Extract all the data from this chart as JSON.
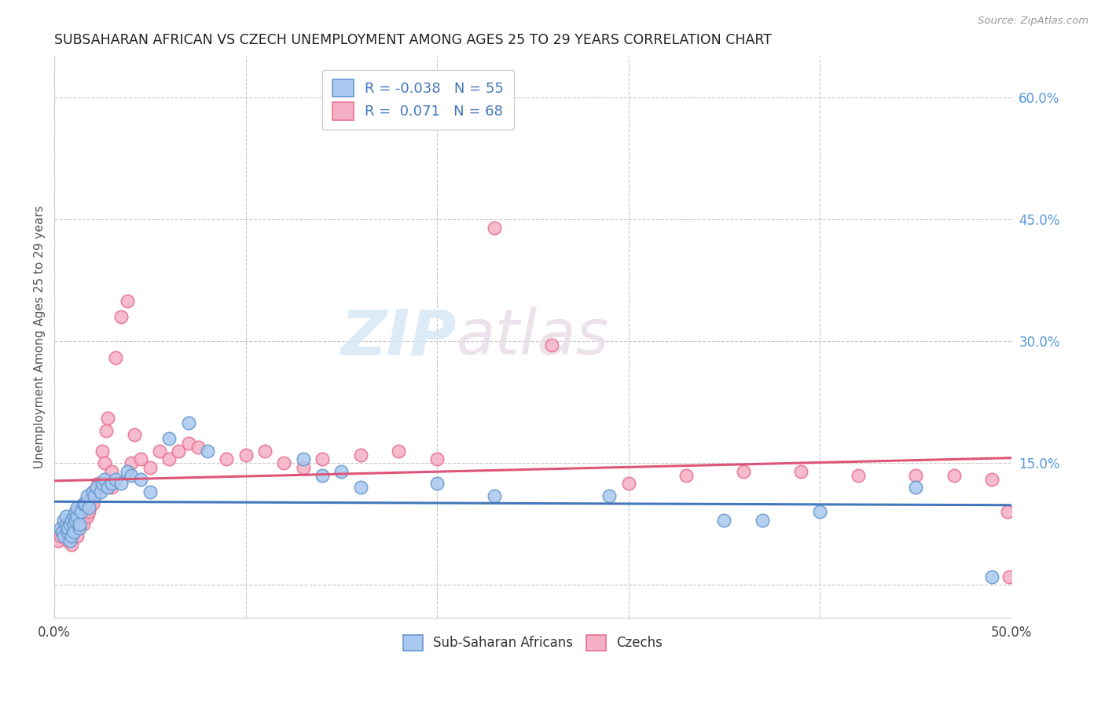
{
  "title": "SUBSAHARAN AFRICAN VS CZECH UNEMPLOYMENT AMONG AGES 25 TO 29 YEARS CORRELATION CHART",
  "source": "Source: ZipAtlas.com",
  "ylabel": "Unemployment Among Ages 25 to 29 years",
  "xlim": [
    0.0,
    0.5
  ],
  "ylim": [
    -0.04,
    0.65
  ],
  "xticks": [
    0.0,
    0.1,
    0.2,
    0.3,
    0.4,
    0.5
  ],
  "xticklabels": [
    "0.0%",
    "",
    "",
    "",
    "",
    "50.0%"
  ],
  "yticks_right": [
    0.6,
    0.45,
    0.3,
    0.15,
    0.0
  ],
  "yticklabels_right": [
    "60.0%",
    "45.0%",
    "30.0%",
    "15.0%",
    ""
  ],
  "background_color": "#ffffff",
  "grid_color": "#c8c8c8",
  "watermark_zip": "ZIP",
  "watermark_atlas": "atlas",
  "legend_labels": [
    "Sub-Saharan Africans",
    "Czechs"
  ],
  "series1_color": "#aac8f0",
  "series2_color": "#f5b0c5",
  "series1_edge_color": "#6699cc",
  "series2_edge_color": "#e87090",
  "series1_line_color": "#4477bb",
  "series2_line_color": "#dd5577",
  "r1": -0.038,
  "n1": 55,
  "r2": 0.071,
  "n2": 68,
  "series1_x": [
    0.003,
    0.004,
    0.005,
    0.005,
    0.006,
    0.006,
    0.007,
    0.007,
    0.008,
    0.008,
    0.009,
    0.009,
    0.01,
    0.01,
    0.01,
    0.011,
    0.011,
    0.012,
    0.012,
    0.013,
    0.013,
    0.014,
    0.015,
    0.016,
    0.017,
    0.018,
    0.02,
    0.021,
    0.022,
    0.024,
    0.025,
    0.026,
    0.028,
    0.03,
    0.032,
    0.035,
    0.038,
    0.04,
    0.045,
    0.05,
    0.06,
    0.07,
    0.08,
    0.13,
    0.14,
    0.15,
    0.16,
    0.2,
    0.23,
    0.29,
    0.35,
    0.37,
    0.4,
    0.45,
    0.49
  ],
  "series1_y": [
    0.07,
    0.065,
    0.08,
    0.06,
    0.075,
    0.085,
    0.065,
    0.07,
    0.075,
    0.055,
    0.06,
    0.08,
    0.075,
    0.085,
    0.065,
    0.08,
    0.09,
    0.085,
    0.095,
    0.07,
    0.075,
    0.09,
    0.1,
    0.1,
    0.11,
    0.095,
    0.115,
    0.11,
    0.12,
    0.115,
    0.125,
    0.13,
    0.12,
    0.125,
    0.13,
    0.125,
    0.14,
    0.135,
    0.13,
    0.115,
    0.18,
    0.2,
    0.165,
    0.155,
    0.135,
    0.14,
    0.12,
    0.125,
    0.11,
    0.11,
    0.08,
    0.08,
    0.09,
    0.12,
    0.01
  ],
  "series2_x": [
    0.002,
    0.003,
    0.004,
    0.005,
    0.006,
    0.007,
    0.008,
    0.008,
    0.009,
    0.01,
    0.01,
    0.011,
    0.012,
    0.012,
    0.013,
    0.014,
    0.015,
    0.015,
    0.016,
    0.017,
    0.018,
    0.018,
    0.019,
    0.02,
    0.02,
    0.021,
    0.022,
    0.023,
    0.024,
    0.025,
    0.026,
    0.027,
    0.028,
    0.03,
    0.03,
    0.032,
    0.035,
    0.038,
    0.04,
    0.042,
    0.045,
    0.05,
    0.055,
    0.06,
    0.065,
    0.07,
    0.075,
    0.09,
    0.1,
    0.11,
    0.12,
    0.13,
    0.14,
    0.16,
    0.18,
    0.2,
    0.23,
    0.26,
    0.3,
    0.33,
    0.36,
    0.39,
    0.42,
    0.45,
    0.47,
    0.49,
    0.498,
    0.499
  ],
  "series2_y": [
    0.055,
    0.06,
    0.065,
    0.07,
    0.06,
    0.055,
    0.065,
    0.08,
    0.05,
    0.065,
    0.075,
    0.07,
    0.08,
    0.06,
    0.085,
    0.075,
    0.09,
    0.075,
    0.095,
    0.085,
    0.1,
    0.09,
    0.105,
    0.1,
    0.115,
    0.115,
    0.12,
    0.125,
    0.12,
    0.165,
    0.15,
    0.19,
    0.205,
    0.14,
    0.12,
    0.28,
    0.33,
    0.35,
    0.15,
    0.185,
    0.155,
    0.145,
    0.165,
    0.155,
    0.165,
    0.175,
    0.17,
    0.155,
    0.16,
    0.165,
    0.15,
    0.145,
    0.155,
    0.16,
    0.165,
    0.155,
    0.44,
    0.295,
    0.125,
    0.135,
    0.14,
    0.14,
    0.135,
    0.135,
    0.135,
    0.13,
    0.09,
    0.01
  ]
}
